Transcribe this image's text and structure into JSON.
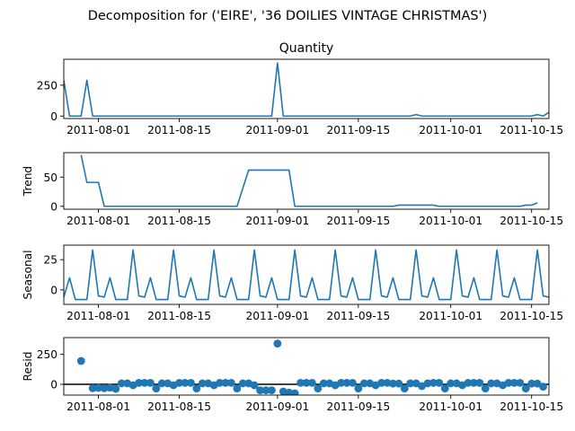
{
  "figure": {
    "suptitle": "Decomposition for ('EIRE', '36 DOILIES VINTAGE CHRISTMAS')",
    "series_color": "#1f77b4"
  },
  "chart_data": [
    {
      "type": "line",
      "panel": "observed",
      "title": "Quantity",
      "ylabel": "",
      "x_type": "date",
      "xlim": [
        "2011-07-26",
        "2011-10-18"
      ],
      "ylim": [
        -20,
        460
      ],
      "x_ticks": [
        "2011-08-01",
        "2011-08-15",
        "2011-09-01",
        "2011-09-15",
        "2011-10-01",
        "2011-10-15"
      ],
      "y_ticks": [
        0,
        250
      ],
      "points": [
        [
          "2011-07-26",
          290
        ],
        [
          "2011-07-27",
          0
        ],
        [
          "2011-07-29",
          0
        ],
        [
          "2011-07-30",
          290
        ],
        [
          "2011-07-31",
          0
        ],
        [
          "2011-08-31",
          0
        ],
        [
          "2011-09-01",
          430
        ],
        [
          "2011-09-02",
          0
        ],
        [
          "2011-09-24",
          0
        ],
        [
          "2011-09-25",
          12
        ],
        [
          "2011-09-26",
          0
        ],
        [
          "2011-10-15",
          0
        ],
        [
          "2011-10-16",
          12
        ],
        [
          "2011-10-17",
          0
        ],
        [
          "2011-10-18",
          30
        ]
      ]
    },
    {
      "type": "line",
      "panel": "trend",
      "title": "",
      "ylabel": "Trend",
      "x_type": "date",
      "xlim": [
        "2011-07-26",
        "2011-10-18"
      ],
      "ylim": [
        -5,
        92
      ],
      "x_ticks": [
        "2011-08-01",
        "2011-08-15",
        "2011-09-01",
        "2011-09-15",
        "2011-10-01",
        "2011-10-15"
      ],
      "y_ticks": [
        0,
        50
      ],
      "points": [
        [
          "2011-07-29",
          88
        ],
        [
          "2011-07-30",
          41
        ],
        [
          "2011-08-01",
          41
        ],
        [
          "2011-08-02",
          0
        ],
        [
          "2011-08-25",
          0
        ],
        [
          "2011-08-27",
          62
        ],
        [
          "2011-09-03",
          62
        ],
        [
          "2011-09-04",
          0
        ],
        [
          "2011-09-21",
          0
        ],
        [
          "2011-09-22",
          2
        ],
        [
          "2011-09-28",
          2
        ],
        [
          "2011-09-29",
          0
        ],
        [
          "2011-10-13",
          0
        ],
        [
          "2011-10-14",
          2
        ],
        [
          "2011-10-15",
          2
        ],
        [
          "2011-10-16",
          6
        ]
      ]
    },
    {
      "type": "line",
      "panel": "seasonal",
      "title": "",
      "ylabel": "Seasonal",
      "x_type": "date",
      "xlim": [
        "2011-07-26",
        "2011-10-18"
      ],
      "ylim": [
        -12,
        37
      ],
      "x_ticks": [
        "2011-08-01",
        "2011-08-15",
        "2011-09-01",
        "2011-09-15",
        "2011-10-01",
        "2011-10-15"
      ],
      "y_ticks": [
        0,
        25
      ],
      "start": "2011-07-25",
      "pattern": [
        -5,
        -6,
        10,
        -8,
        -8,
        -8,
        33
      ],
      "end": "2011-10-18"
    },
    {
      "type": "scatter",
      "panel": "resid",
      "title": "",
      "ylabel": "Resid",
      "x_type": "date",
      "xlim": [
        "2011-07-26",
        "2011-10-18"
      ],
      "ylim": [
        -90,
        390
      ],
      "x_ticks": [
        "2011-08-01",
        "2011-08-15",
        "2011-09-01",
        "2011-09-15",
        "2011-10-01",
        "2011-10-15"
      ],
      "y_ticks": [
        0,
        250
      ],
      "baseline": 0,
      "points": [
        [
          "2011-07-29",
          195
        ],
        [
          "2011-07-31",
          -33
        ],
        [
          "2011-08-01",
          -30
        ],
        [
          "2011-08-02",
          -33
        ],
        [
          "2011-08-03",
          -28
        ],
        [
          "2011-08-04",
          -38
        ],
        [
          "2011-08-05",
          8
        ],
        [
          "2011-08-06",
          8
        ],
        [
          "2011-08-07",
          -8
        ],
        [
          "2011-08-08",
          12
        ],
        [
          "2011-08-09",
          12
        ],
        [
          "2011-08-10",
          12
        ],
        [
          "2011-08-11",
          -35
        ],
        [
          "2011-08-12",
          8
        ],
        [
          "2011-08-13",
          8
        ],
        [
          "2011-08-14",
          -8
        ],
        [
          "2011-08-15",
          12
        ],
        [
          "2011-08-16",
          12
        ],
        [
          "2011-08-17",
          12
        ],
        [
          "2011-08-18",
          -35
        ],
        [
          "2011-08-19",
          8
        ],
        [
          "2011-08-20",
          8
        ],
        [
          "2011-08-21",
          -8
        ],
        [
          "2011-08-22",
          12
        ],
        [
          "2011-08-23",
          12
        ],
        [
          "2011-08-24",
          12
        ],
        [
          "2011-08-25",
          -35
        ],
        [
          "2011-08-26",
          8
        ],
        [
          "2011-08-27",
          8
        ],
        [
          "2011-08-28",
          -8
        ],
        [
          "2011-08-29",
          -50
        ],
        [
          "2011-08-30",
          -50
        ],
        [
          "2011-08-31",
          -50
        ],
        [
          "2011-09-01",
          340
        ],
        [
          "2011-09-02",
          -60
        ],
        [
          "2011-09-03",
          -70
        ],
        [
          "2011-09-04",
          -75
        ],
        [
          "2011-09-05",
          12
        ],
        [
          "2011-09-06",
          12
        ],
        [
          "2011-09-07",
          12
        ],
        [
          "2011-09-08",
          -35
        ],
        [
          "2011-09-09",
          8
        ],
        [
          "2011-09-10",
          8
        ],
        [
          "2011-09-11",
          -8
        ],
        [
          "2011-09-12",
          12
        ],
        [
          "2011-09-13",
          12
        ],
        [
          "2011-09-14",
          12
        ],
        [
          "2011-09-15",
          -35
        ],
        [
          "2011-09-16",
          8
        ],
        [
          "2011-09-17",
          8
        ],
        [
          "2011-09-18",
          -8
        ],
        [
          "2011-09-19",
          12
        ],
        [
          "2011-09-20",
          12
        ],
        [
          "2011-09-21",
          6
        ],
        [
          "2011-09-22",
          6
        ],
        [
          "2011-09-23",
          -35
        ],
        [
          "2011-09-24",
          8
        ],
        [
          "2011-09-25",
          8
        ],
        [
          "2011-09-26",
          -15
        ],
        [
          "2011-09-27",
          8
        ],
        [
          "2011-09-28",
          12
        ],
        [
          "2011-09-29",
          12
        ],
        [
          "2011-09-30",
          -35
        ],
        [
          "2011-10-01",
          8
        ],
        [
          "2011-10-02",
          8
        ],
        [
          "2011-10-03",
          -8
        ],
        [
          "2011-10-04",
          12
        ],
        [
          "2011-10-05",
          12
        ],
        [
          "2011-10-06",
          12
        ],
        [
          "2011-10-07",
          -35
        ],
        [
          "2011-10-08",
          8
        ],
        [
          "2011-10-09",
          8
        ],
        [
          "2011-10-10",
          -8
        ],
        [
          "2011-10-11",
          12
        ],
        [
          "2011-10-12",
          12
        ],
        [
          "2011-10-13",
          12
        ],
        [
          "2011-10-14",
          -35
        ],
        [
          "2011-10-15",
          6
        ],
        [
          "2011-10-16",
          6
        ],
        [
          "2011-10-17",
          -20
        ]
      ]
    }
  ]
}
